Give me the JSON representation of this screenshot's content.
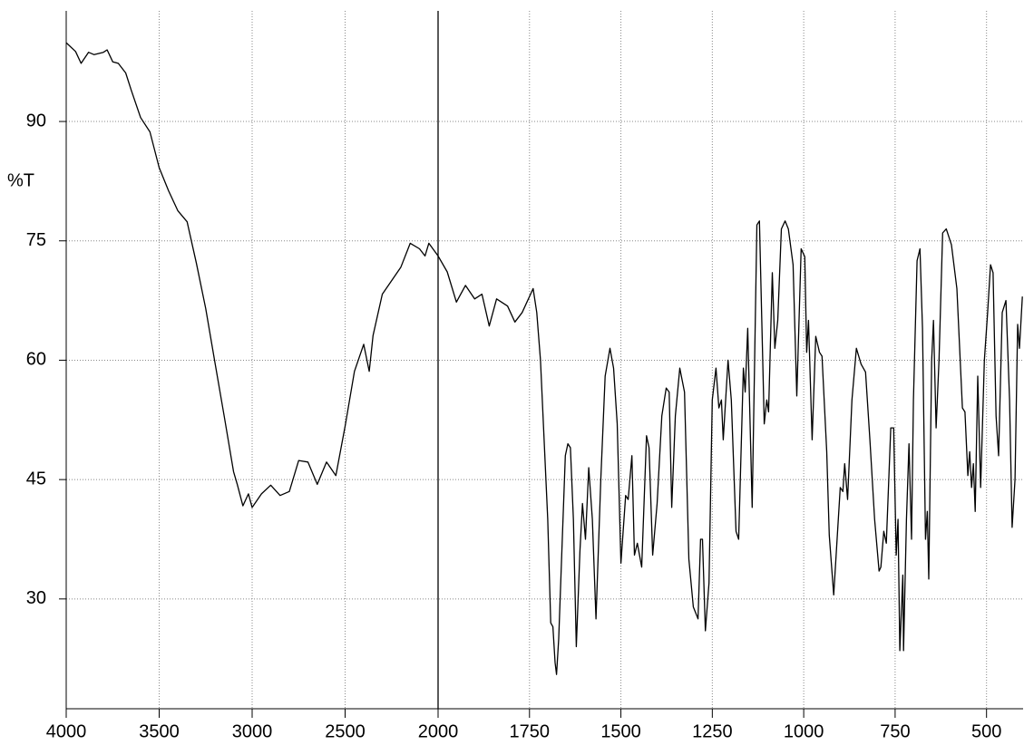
{
  "chart_data": {
    "type": "line",
    "ylabel": "%T",
    "x": [
      4000,
      3950,
      3920,
      3880,
      3850,
      3800,
      3780,
      3750,
      3720,
      3680,
      3650,
      3600,
      3550,
      3500,
      3450,
      3400,
      3350,
      3300,
      3250,
      3200,
      3150,
      3100,
      3080,
      3050,
      3020,
      3000,
      2950,
      2900,
      2850,
      2800,
      2750,
      2700,
      2650,
      2600,
      2550,
      2500,
      2450,
      2400,
      2370,
      2350,
      2300,
      2250,
      2200,
      2150,
      2100,
      2070,
      2050,
      2000,
      1975,
      1950,
      1925,
      1900,
      1880,
      1860,
      1840,
      1810,
      1790,
      1770,
      1740,
      1730,
      1720,
      1710,
      1700,
      1692,
      1686,
      1680,
      1676,
      1670,
      1660,
      1652,
      1645,
      1638,
      1630,
      1622,
      1612,
      1605,
      1597,
      1588,
      1578,
      1568,
      1555,
      1543,
      1530,
      1520,
      1510,
      1500,
      1487,
      1480,
      1470,
      1463,
      1455,
      1443,
      1430,
      1423,
      1413,
      1401,
      1388,
      1376,
      1368,
      1361,
      1351,
      1339,
      1326,
      1314,
      1302,
      1289,
      1282,
      1277,
      1269,
      1259,
      1250,
      1240,
      1232,
      1225,
      1220,
      1207,
      1198,
      1185,
      1178,
      1165,
      1160,
      1153,
      1141,
      1128,
      1121,
      1108,
      1101,
      1096,
      1086,
      1079,
      1071,
      1061,
      1051,
      1042,
      1029,
      1019,
      1007,
      997,
      992,
      987,
      977,
      967,
      957,
      950,
      937,
      930,
      918,
      908,
      900,
      893,
      888,
      880,
      868,
      856,
      843,
      831,
      819,
      806,
      794,
      789,
      781,
      774,
      762,
      754,
      747,
      742,
      737,
      729,
      727,
      719,
      712,
      705,
      700,
      690,
      682,
      675,
      667,
      662,
      658,
      650,
      645,
      638,
      630,
      620,
      610,
      596,
      581,
      566,
      559,
      551,
      546,
      541,
      536,
      531,
      524,
      516,
      506,
      497,
      489,
      482,
      474,
      467,
      457,
      447,
      437,
      430,
      422,
      415,
      410,
      402
    ],
    "values": [
      99.9,
      98.8,
      97.3,
      98.7,
      98.4,
      98.7,
      99,
      97.5,
      97.3,
      96.1,
      93.9,
      90.5,
      88.7,
      84.2,
      81.3,
      78.8,
      77.4,
      72.2,
      66.5,
      59.7,
      52.9,
      46,
      44.4,
      41.7,
      43.2,
      41.5,
      43.2,
      44.3,
      43,
      43.5,
      47.4,
      47.2,
      44.4,
      47.2,
      45.5,
      51.7,
      58.6,
      62,
      58.6,
      63.1,
      68.3,
      70,
      71.7,
      74.7,
      74,
      73.1,
      74.7,
      73.1,
      71.1,
      67.3,
      69.4,
      67.7,
      68.3,
      64.3,
      67.7,
      66.8,
      64.8,
      66,
      69,
      66,
      60,
      50,
      40,
      27,
      26.5,
      22,
      20.5,
      25,
      38,
      48,
      49.5,
      49,
      40,
      24,
      36,
      42,
      37.5,
      46.5,
      40,
      27.5,
      45,
      58,
      61.5,
      59,
      52,
      34.5,
      43,
      42.5,
      48,
      35.5,
      37,
      34,
      50.5,
      49,
      35.5,
      42,
      53,
      56.5,
      56,
      41.5,
      53,
      59,
      56,
      35,
      29,
      27.5,
      37.5,
      37.5,
      26,
      32,
      55,
      59,
      54,
      55,
      50,
      60,
      55,
      38.5,
      37.5,
      59,
      56,
      64,
      41.5,
      77,
      77.5,
      52,
      55,
      53.5,
      71,
      61.5,
      65,
      76.5,
      77.5,
      76.5,
      72,
      55.5,
      74,
      73,
      61,
      65,
      50,
      63,
      61,
      60.5,
      48.5,
      38,
      30.5,
      38,
      44,
      43.5,
      47,
      42.5,
      55,
      61.5,
      59.5,
      58.5,
      50,
      40,
      33.5,
      34,
      38.5,
      37,
      51.5,
      51.5,
      35.5,
      40,
      23.5,
      33,
      23.5,
      40,
      49.5,
      37.5,
      55,
      72.5,
      74,
      64,
      37.5,
      41,
      32.5,
      60,
      65,
      51.5,
      60,
      76,
      76.5,
      74.5,
      69,
      54,
      53.5,
      45.5,
      48.5,
      44,
      47,
      41,
      58,
      44,
      60,
      66,
      72,
      71,
      53,
      48,
      66,
      67.5,
      55,
      39,
      45,
      64.5,
      61.5,
      68
    ],
    "color": "#000000",
    "xlim": [
      4000,
      400
    ],
    "xbreak": 2000,
    "xticks": [
      4000,
      3500,
      3000,
      2500,
      2000,
      1750,
      1500,
      1250,
      1000,
      750,
      500
    ],
    "ylim": [
      16.2,
      103.9
    ],
    "yticks": [
      30,
      45,
      60,
      75,
      90
    ],
    "grid": true
  }
}
